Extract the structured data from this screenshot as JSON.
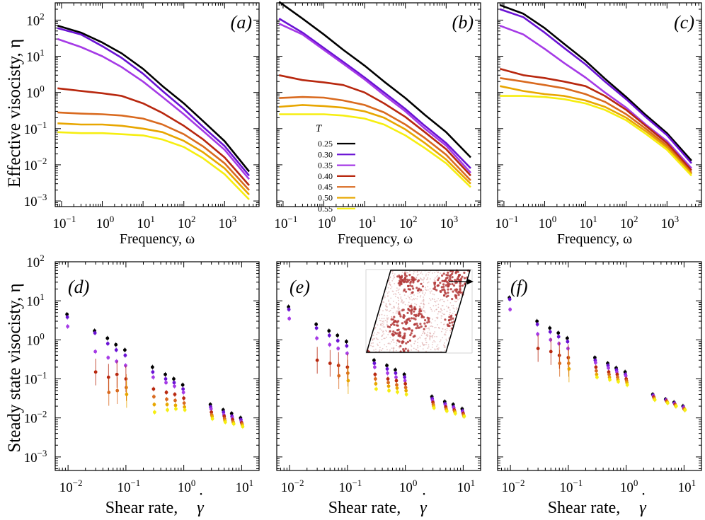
{
  "ylabel_top": "Effective visocisty, η",
  "ylabel_bottom": "Steady state visocisty, η",
  "xlabel_top": "Frequency, ω",
  "xlabel_bottom_text": "Shear rate,",
  "xlabel_bottom_symbol": "γ",
  "xlabel_bottom_dot": "˙",
  "legend_title": "T",
  "legend": [
    {
      "label": "0.25",
      "color": "#000000"
    },
    {
      "label": "0.30",
      "color": "#6a12d4"
    },
    {
      "label": "0.35",
      "color": "#a53ae6"
    },
    {
      "label": "0.40",
      "color": "#b8280f"
    },
    {
      "label": "0.45",
      "color": "#d96a1f"
    },
    {
      "label": "0.50",
      "color": "#e8a600"
    },
    {
      "label": "0.55",
      "color": "#f6ee10"
    }
  ],
  "chart_data": [
    {
      "type": "line",
      "panel": "(a)",
      "title": "(a)",
      "xlabel": "Frequency, ω",
      "ylabel": "Effective visocisty, η",
      "xscale": "log",
      "yscale": "log",
      "xlim": [
        0.07,
        7000
      ],
      "ylim": [
        0.0007,
        300
      ],
      "xticks": [
        "10^-1",
        "10^0",
        "10^1",
        "10^2",
        "10^3"
      ],
      "yticks": [
        "10^-3",
        "10^-2",
        "10^-1",
        "10^0",
        "10^1",
        "10^2"
      ],
      "x": [
        0.08,
        0.3,
        1,
        3,
        10,
        30,
        100,
        300,
        1000,
        4000
      ],
      "series": [
        {
          "name": "0.25",
          "values": [
            70,
            45,
            24,
            12,
            4.5,
            1.5,
            0.5,
            0.16,
            0.045,
            0.0065
          ]
        },
        {
          "name": "0.30",
          "values": [
            60,
            40,
            19,
            9,
            3.3,
            1.1,
            0.35,
            0.11,
            0.033,
            0.005
          ]
        },
        {
          "name": "0.35",
          "values": [
            30,
            18,
            10,
            5,
            2,
            0.75,
            0.25,
            0.085,
            0.026,
            0.004
          ]
        },
        {
          "name": "0.40",
          "values": [
            1.3,
            1.1,
            0.95,
            0.8,
            0.5,
            0.27,
            0.12,
            0.05,
            0.016,
            0.0027
          ]
        },
        {
          "name": "0.45",
          "values": [
            0.28,
            0.26,
            0.25,
            0.23,
            0.19,
            0.13,
            0.07,
            0.032,
            0.011,
            0.002
          ]
        },
        {
          "name": "0.50",
          "values": [
            0.14,
            0.13,
            0.13,
            0.12,
            0.1,
            0.08,
            0.046,
            0.022,
            0.008,
            0.0015
          ]
        },
        {
          "name": "0.55",
          "values": [
            0.08,
            0.075,
            0.075,
            0.07,
            0.065,
            0.05,
            0.031,
            0.015,
            0.0055,
            0.0011
          ]
        }
      ]
    },
    {
      "type": "line",
      "panel": "(b)",
      "title": "(b)",
      "xlabel": "Frequency, ω",
      "xscale": "log",
      "yscale": "log",
      "xlim": [
        0.07,
        7000
      ],
      "ylim": [
        0.0007,
        300
      ],
      "xticks": [
        "10^-1",
        "10^0",
        "10^1",
        "10^2",
        "10^3"
      ],
      "x": [
        0.08,
        0.3,
        1,
        3,
        10,
        30,
        100,
        300,
        1000,
        4000
      ],
      "series": [
        {
          "name": "0.25",
          "values": [
            320,
            110,
            40,
            15,
            5.5,
            2,
            0.7,
            0.24,
            0.08,
            0.016
          ]
        },
        {
          "name": "0.30",
          "values": [
            110,
            45,
            17,
            7,
            2.6,
            1,
            0.35,
            0.12,
            0.04,
            0.008
          ]
        },
        {
          "name": "0.35",
          "values": [
            80,
            40,
            15,
            6.2,
            2.3,
            0.85,
            0.3,
            0.1,
            0.034,
            0.006
          ]
        },
        {
          "name": "0.40",
          "values": [
            3,
            2.2,
            1.9,
            1.6,
            1,
            0.5,
            0.21,
            0.08,
            0.027,
            0.005
          ]
        },
        {
          "name": "0.45",
          "values": [
            0.7,
            0.75,
            0.72,
            0.6,
            0.45,
            0.28,
            0.13,
            0.055,
            0.019,
            0.0037
          ]
        },
        {
          "name": "0.50",
          "values": [
            0.4,
            0.45,
            0.42,
            0.38,
            0.3,
            0.2,
            0.095,
            0.04,
            0.014,
            0.003
          ]
        },
        {
          "name": "0.55",
          "values": [
            0.25,
            0.25,
            0.25,
            0.23,
            0.19,
            0.13,
            0.065,
            0.029,
            0.011,
            0.0024
          ]
        }
      ]
    },
    {
      "type": "line",
      "panel": "(c)",
      "title": "(c)",
      "xlabel": "Frequency, ω",
      "xscale": "log",
      "yscale": "log",
      "xlim": [
        0.07,
        7000
      ],
      "ylim": [
        0.0007,
        300
      ],
      "xticks": [
        "10^-1",
        "10^0",
        "10^1",
        "10^2",
        "10^3"
      ],
      "x": [
        0.08,
        0.3,
        1,
        3,
        10,
        30,
        100,
        300,
        1000,
        4000
      ],
      "series": [
        {
          "name": "0.25",
          "values": [
            260,
            150,
            60,
            22,
            7.5,
            2.4,
            0.75,
            0.24,
            0.075,
            0.013
          ]
        },
        {
          "name": "0.30",
          "values": [
            200,
            120,
            45,
            17,
            6,
            2,
            0.65,
            0.21,
            0.066,
            0.011
          ]
        },
        {
          "name": "0.35",
          "values": [
            70,
            40,
            16,
            6.5,
            2.6,
            1,
            0.38,
            0.13,
            0.045,
            0.008
          ]
        },
        {
          "name": "0.40",
          "values": [
            4.5,
            3,
            2.5,
            2,
            1.5,
            0.8,
            0.33,
            0.12,
            0.04,
            0.007
          ]
        },
        {
          "name": "0.45",
          "values": [
            2.5,
            2,
            1.6,
            1.3,
            0.9,
            0.55,
            0.25,
            0.1,
            0.034,
            0.006
          ]
        },
        {
          "name": "0.50",
          "values": [
            1.5,
            1.1,
            0.9,
            0.8,
            0.6,
            0.4,
            0.2,
            0.085,
            0.03,
            0.0055
          ]
        },
        {
          "name": "0.55",
          "values": [
            0.8,
            0.8,
            0.75,
            0.65,
            0.5,
            0.33,
            0.17,
            0.072,
            0.026,
            0.005
          ]
        }
      ]
    },
    {
      "type": "scatter",
      "panel": "(d)",
      "title": "(d)",
      "xlabel": "Shear rate, γ̇",
      "ylabel": "Steady state visocisty, η",
      "xscale": "log",
      "yscale": "log",
      "xlim": [
        0.006,
        20
      ],
      "ylim": [
        0.00045,
        100
      ],
      "xticks": [
        "10^-2",
        "10^-1",
        "10^0",
        "10^1"
      ],
      "yticks": [
        "10^-3",
        "10^-2",
        "10^-1",
        "10^0",
        "10^1",
        "10^2"
      ],
      "x": [
        0.01,
        0.03,
        0.05,
        0.07,
        0.1,
        0.3,
        0.5,
        0.7,
        1,
        3,
        5,
        7,
        10
      ],
      "series": [
        {
          "name": "0.25",
          "values": [
            4.5,
            1.7,
            1.1,
            0.75,
            0.55,
            0.2,
            0.13,
            0.1,
            0.07,
            0.022,
            0.016,
            0.013,
            0.01
          ]
        },
        {
          "name": "0.30",
          "values": [
            3.8,
            1.5,
            0.8,
            0.55,
            0.4,
            0.15,
            0.1,
            0.08,
            0.055,
            0.019,
            0.014,
            0.011,
            0.009
          ]
        },
        {
          "name": "0.35",
          "values": [
            2.2,
            0.5,
            0.35,
            0.28,
            0.22,
            0.11,
            0.08,
            0.065,
            0.045,
            0.017,
            0.012,
            0.01,
            0.008
          ]
        },
        {
          "name": "0.40",
          "values": [
            null,
            0.15,
            0.11,
            0.13,
            0.1,
            0.055,
            0.045,
            0.04,
            0.032,
            0.014,
            0.011,
            0.009,
            0.0075
          ]
        },
        {
          "name": "0.45",
          "values": [
            null,
            null,
            0.045,
            0.05,
            0.06,
            0.035,
            0.03,
            0.028,
            0.024,
            0.012,
            0.0095,
            0.008,
            0.007
          ]
        },
        {
          "name": "0.50",
          "values": [
            null,
            null,
            null,
            null,
            0.04,
            0.022,
            0.022,
            0.021,
            0.019,
            0.011,
            0.0085,
            0.0075,
            0.0065
          ]
        },
        {
          "name": "0.55",
          "values": [
            null,
            null,
            null,
            null,
            null,
            0.014,
            0.016,
            0.017,
            0.016,
            0.0095,
            0.0078,
            0.007,
            0.006
          ]
        }
      ]
    },
    {
      "type": "scatter",
      "panel": "(e)",
      "title": "(e)",
      "xlabel": "Shear rate, γ̇",
      "xscale": "log",
      "yscale": "log",
      "xlim": [
        0.006,
        20
      ],
      "ylim": [
        0.00045,
        100
      ],
      "xticks": [
        "10^-2",
        "10^-1",
        "10^0",
        "10^1"
      ],
      "x": [
        0.01,
        0.03,
        0.05,
        0.07,
        0.1,
        0.3,
        0.5,
        0.7,
        1,
        3,
        5,
        7,
        10
      ],
      "series": [
        {
          "name": "0.25",
          "values": [
            7,
            2.5,
            1.7,
            1.3,
            0.9,
            0.3,
            0.22,
            0.17,
            0.13,
            0.035,
            0.026,
            0.022,
            0.017
          ]
        },
        {
          "name": "0.30",
          "values": [
            6,
            2,
            1.3,
            0.95,
            0.7,
            0.25,
            0.18,
            0.14,
            0.11,
            0.031,
            0.023,
            0.019,
            0.015
          ]
        },
        {
          "name": "0.35",
          "values": [
            3.5,
            1.1,
            0.75,
            0.6,
            0.45,
            0.2,
            0.14,
            0.11,
            0.09,
            0.028,
            0.021,
            0.018,
            0.014
          ]
        },
        {
          "name": "0.40",
          "values": [
            null,
            0.3,
            0.25,
            0.22,
            0.2,
            0.13,
            0.1,
            0.09,
            0.075,
            0.025,
            0.019,
            0.016,
            0.013
          ]
        },
        {
          "name": "0.45",
          "values": [
            null,
            null,
            null,
            0.12,
            0.14,
            0.1,
            0.08,
            0.07,
            0.06,
            0.022,
            0.017,
            0.015,
            0.012
          ]
        },
        {
          "name": "0.50",
          "values": [
            null,
            null,
            null,
            null,
            0.09,
            0.075,
            0.065,
            0.058,
            0.05,
            0.02,
            0.016,
            0.014,
            0.011
          ]
        },
        {
          "name": "0.55",
          "values": [
            null,
            null,
            null,
            null,
            null,
            0.055,
            0.05,
            0.046,
            0.04,
            0.018,
            0.015,
            0.013,
            0.011
          ]
        }
      ]
    },
    {
      "type": "scatter",
      "panel": "(f)",
      "title": "(f)",
      "xlabel": "Shear rate, γ̇",
      "xscale": "log",
      "yscale": "log",
      "xlim": [
        0.006,
        20
      ],
      "ylim": [
        0.00045,
        100
      ],
      "xticks": [
        "10^-2",
        "10^-1",
        "10^0",
        "10^1"
      ],
      "x": [
        0.01,
        0.03,
        0.05,
        0.07,
        0.1,
        0.3,
        0.5,
        0.7,
        1,
        3,
        5,
        7,
        10
      ],
      "series": [
        {
          "name": "0.25",
          "values": [
            12,
            3,
            2,
            1.5,
            1.1,
            0.35,
            0.25,
            0.19,
            0.15,
            0.04,
            0.03,
            0.025,
            0.02
          ]
        },
        {
          "name": "0.30",
          "values": [
            11,
            2.5,
            1.6,
            1.2,
            0.9,
            0.3,
            0.22,
            0.17,
            0.13,
            0.038,
            0.029,
            0.024,
            0.019
          ]
        },
        {
          "name": "0.35",
          "values": [
            6,
            1.4,
            1,
            0.8,
            0.6,
            0.26,
            0.19,
            0.15,
            0.12,
            0.036,
            0.028,
            0.023,
            0.018
          ]
        },
        {
          "name": "0.40",
          "values": [
            null,
            0.6,
            0.5,
            0.4,
            0.35,
            0.2,
            0.15,
            0.13,
            0.1,
            0.034,
            0.027,
            0.022,
            0.017
          ]
        },
        {
          "name": "0.45",
          "values": [
            null,
            null,
            null,
            0.25,
            0.25,
            0.16,
            0.13,
            0.11,
            0.09,
            0.032,
            0.026,
            0.021,
            0.017
          ]
        },
        {
          "name": "0.50",
          "values": [
            null,
            null,
            null,
            null,
            0.18,
            0.13,
            0.11,
            0.095,
            0.08,
            0.03,
            0.025,
            0.02,
            0.016
          ]
        },
        {
          "name": "0.55",
          "values": [
            null,
            null,
            null,
            null,
            null,
            0.11,
            0.095,
            0.085,
            0.07,
            0.029,
            0.024,
            0.02,
            0.016
          ]
        }
      ]
    }
  ]
}
